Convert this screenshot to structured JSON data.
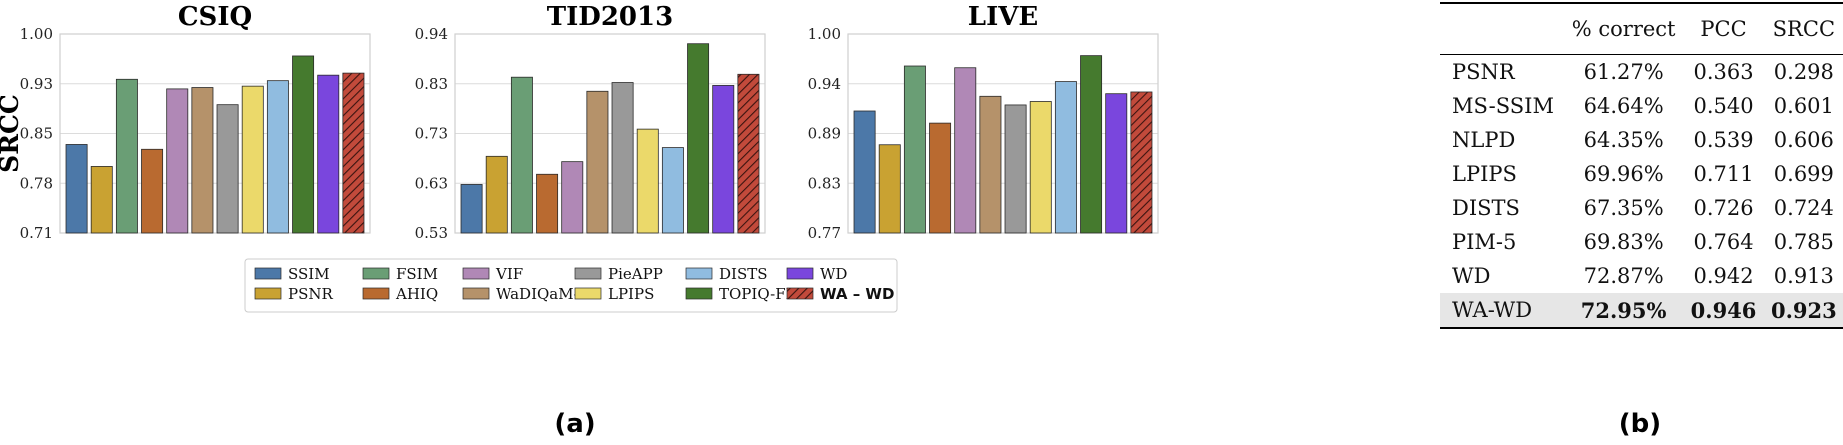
{
  "chart_data": [
    {
      "type": "bar",
      "title": "CSIQ",
      "ylabel": "SRCC",
      "yticks": [
        "0.71",
        "0.78",
        "0.85",
        "0.93",
        "1.00"
      ],
      "ylim": [
        0.71,
        1.0
      ],
      "categories": [
        "SSIM",
        "PSNR",
        "FSIM",
        "AHIQ",
        "VIF",
        "WaDIQaM-FR",
        "PieAPP",
        "LPIPS",
        "DISTS",
        "TOPIQ-FR",
        "WD",
        "WA – WD"
      ],
      "values": [
        0.839,
        0.807,
        0.934,
        0.832,
        0.92,
        0.922,
        0.897,
        0.924,
        0.932,
        0.968,
        0.94,
        0.943
      ]
    },
    {
      "type": "bar",
      "title": "TID2013",
      "ylabel": "",
      "yticks": [
        "0.53",
        "0.63",
        "0.73",
        "0.83",
        "0.94"
      ],
      "ylim": [
        0.53,
        0.94
      ],
      "categories": [
        "SSIM",
        "PSNR",
        "FSIM",
        "AHIQ",
        "VIF",
        "WaDIQaM-FR",
        "PieAPP",
        "LPIPS",
        "DISTS",
        "TOPIQ-FR",
        "WD",
        "WA – WD"
      ],
      "values": [
        0.63,
        0.688,
        0.851,
        0.651,
        0.677,
        0.822,
        0.84,
        0.744,
        0.706,
        0.92,
        0.834,
        0.857
      ]
    },
    {
      "type": "bar",
      "title": "LIVE",
      "ylabel": "",
      "yticks": [
        "0.77",
        "0.83",
        "0.89",
        "0.94",
        "1.00"
      ],
      "ylim": [
        0.77,
        1.0
      ],
      "categories": [
        "SSIM",
        "PSNR",
        "FSIM",
        "AHIQ",
        "VIF",
        "WaDIQaM-FR",
        "PieAPP",
        "LPIPS",
        "DISTS",
        "TOPIQ-FR",
        "WD",
        "WA – WD"
      ],
      "values": [
        0.911,
        0.872,
        0.963,
        0.897,
        0.961,
        0.928,
        0.918,
        0.922,
        0.945,
        0.975,
        0.931,
        0.933
      ]
    }
  ],
  "series_colors": [
    "#4c78a8",
    "#c9a232",
    "#6a9e75",
    "#b96a30",
    "#b088b6",
    "#b5926a",
    "#999999",
    "#ebd96a",
    "#90bce0",
    "#457a2e",
    "#7a46dd",
    "#c24a3b"
  ],
  "legend": [
    {
      "label": "SSIM",
      "color": "#4c78a8"
    },
    {
      "label": "PSNR",
      "color": "#c9a232"
    },
    {
      "label": "FSIM",
      "color": "#6a9e75"
    },
    {
      "label": "AHIQ",
      "color": "#b96a30"
    },
    {
      "label": "VIF",
      "color": "#b088b6"
    },
    {
      "label": "WaDIQaM-FR",
      "color": "#b5926a"
    },
    {
      "label": "PieAPP",
      "color": "#999999"
    },
    {
      "label": "LPIPS",
      "color": "#ebd96a"
    },
    {
      "label": "DISTS",
      "color": "#90bce0"
    },
    {
      "label": "TOPIQ-FR",
      "color": "#457a2e"
    },
    {
      "label": "WD",
      "color": "#7a46dd"
    },
    {
      "label": "WA – WD",
      "color": "#c24a3b"
    }
  ],
  "captions": {
    "a": "(a)",
    "b": "(b)"
  },
  "table": {
    "headers": [
      "",
      "% correct",
      "PCC",
      "SRCC"
    ],
    "rows": [
      [
        "PSNR",
        "61.27%",
        "0.363",
        "0.298"
      ],
      [
        "MS-SSIM",
        "64.64%",
        "0.540",
        "0.601"
      ],
      [
        "NLPD",
        "64.35%",
        "0.539",
        "0.606"
      ],
      [
        "LPIPS",
        "69.96%",
        "0.711",
        "0.699"
      ],
      [
        "DISTS",
        "67.35%",
        "0.726",
        "0.724"
      ],
      [
        "PIM-5",
        "69.83%",
        "0.764",
        "0.785"
      ],
      [
        "WD",
        "72.87%",
        "0.942",
        "0.913"
      ],
      [
        "WA-WD",
        "72.95%",
        "0.946",
        "0.923"
      ]
    ]
  }
}
